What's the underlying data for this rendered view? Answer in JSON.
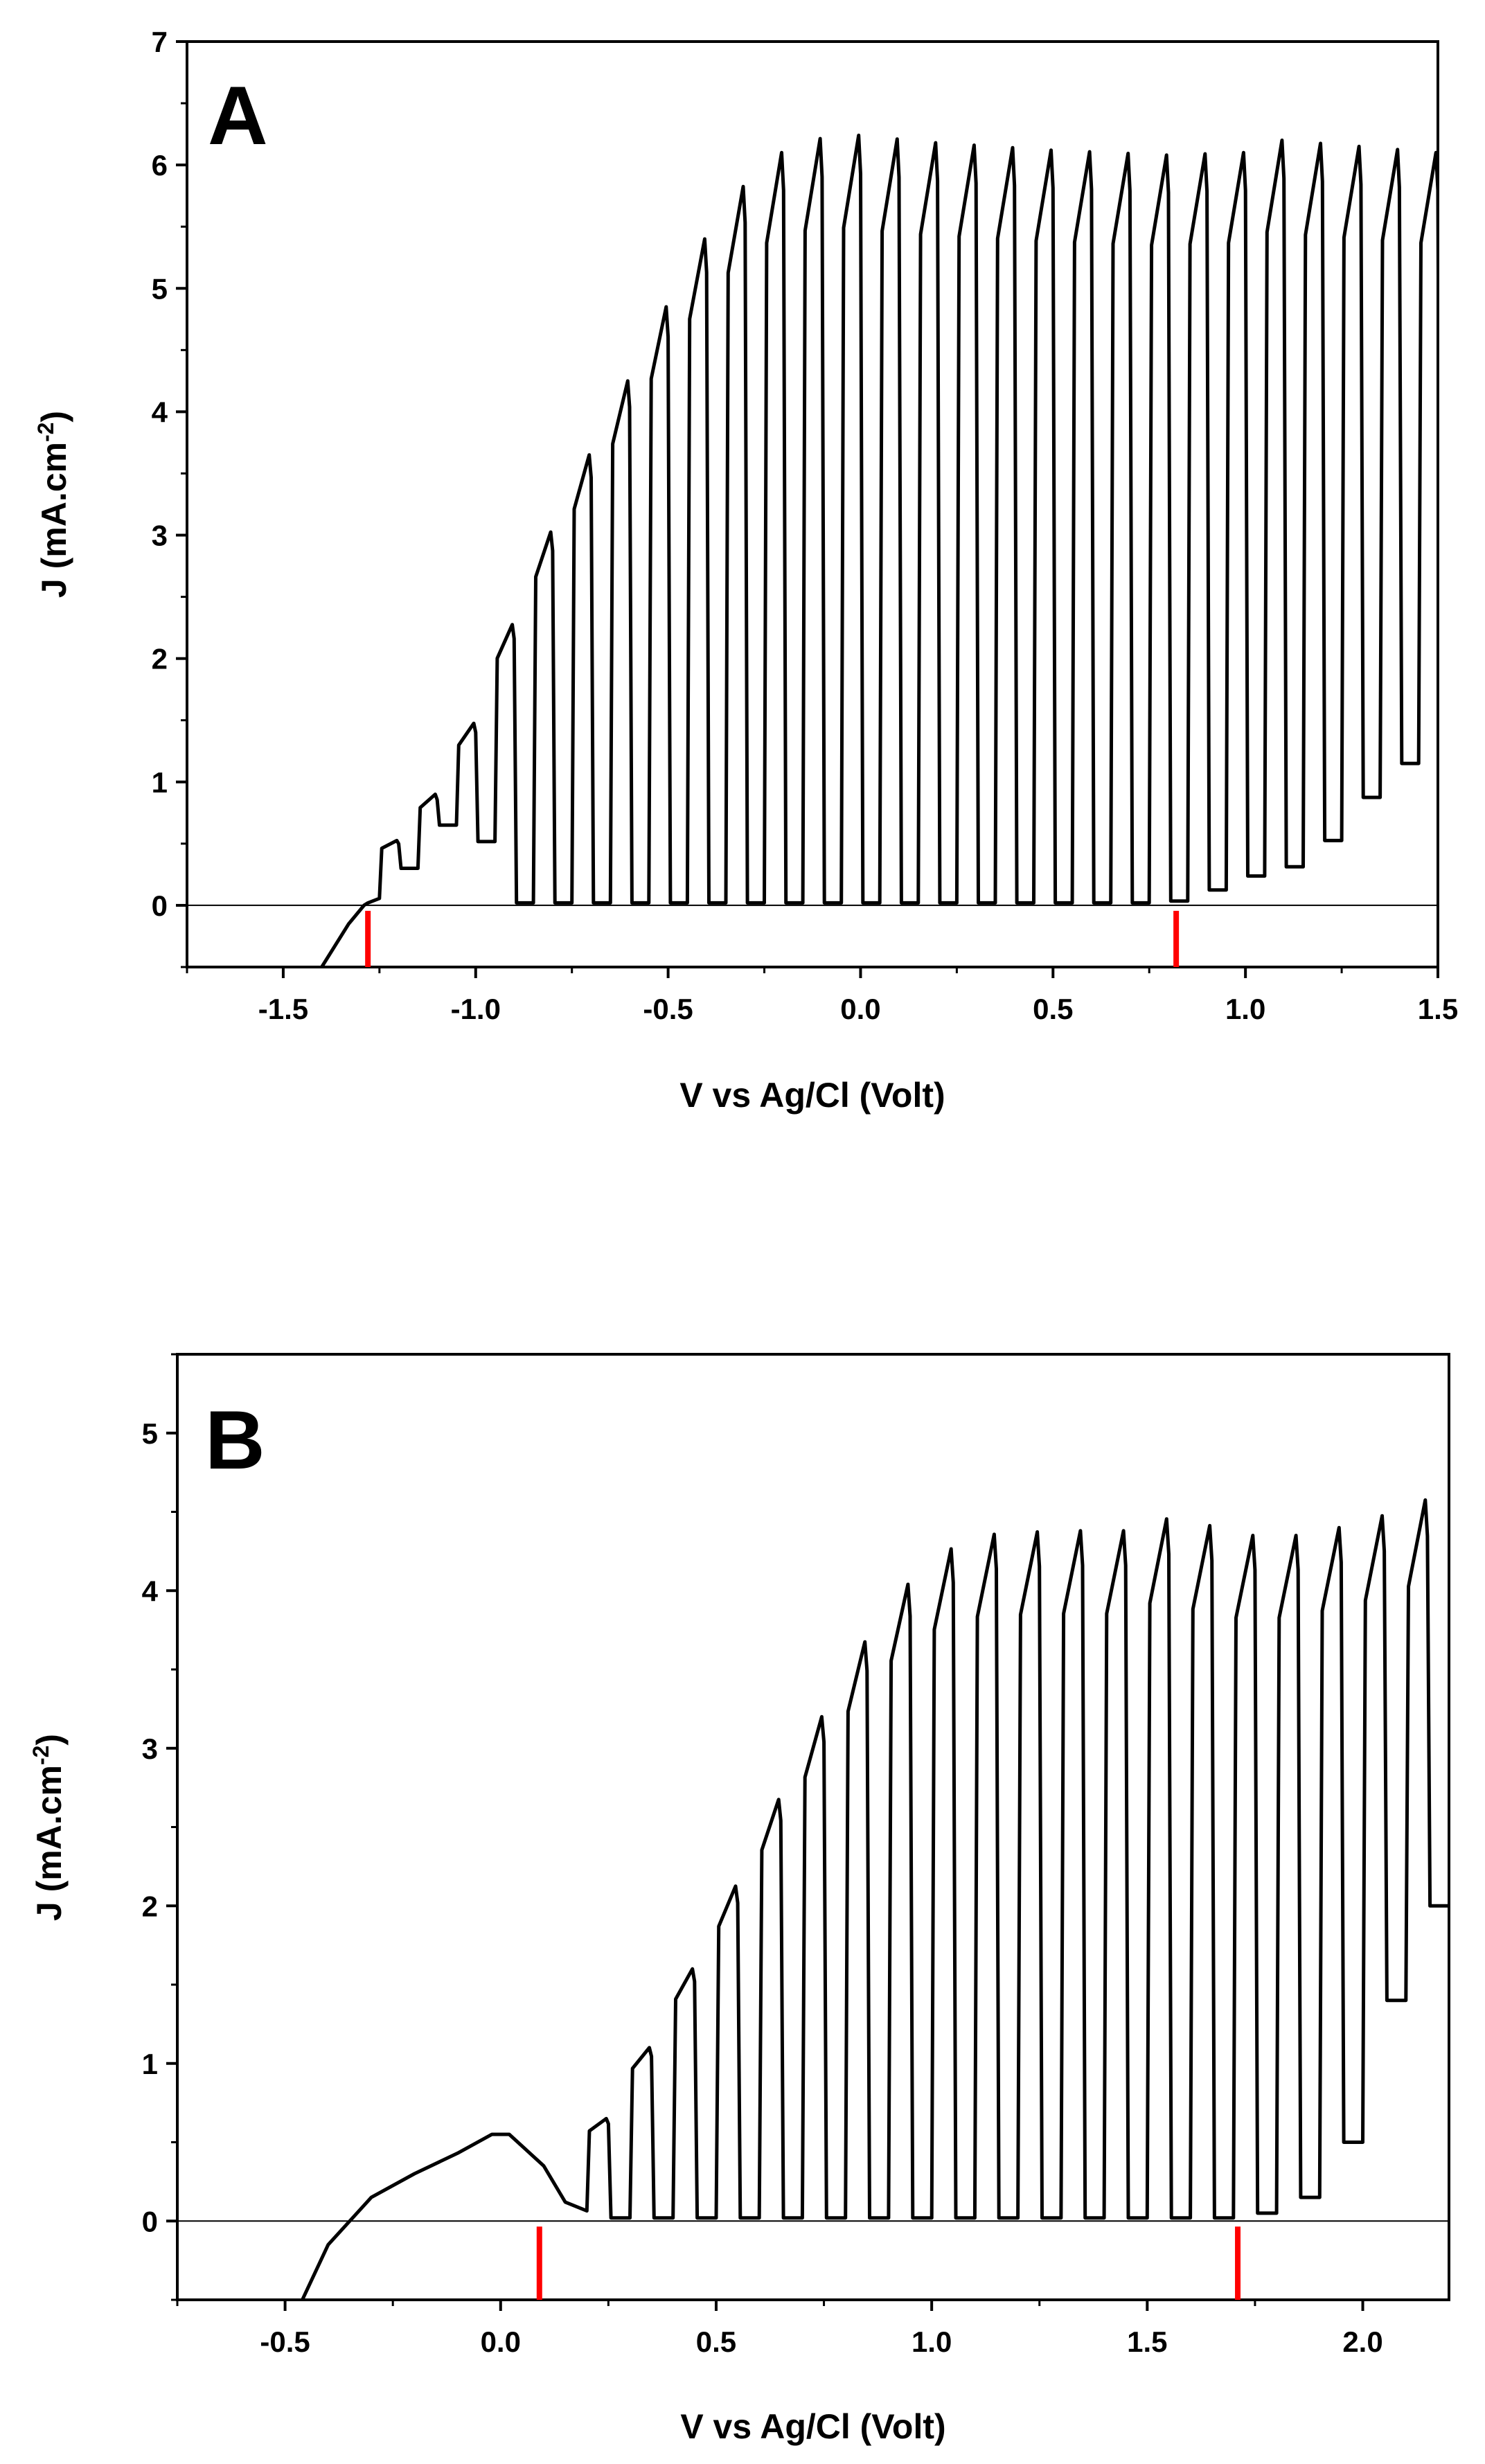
{
  "chart_data": [
    {
      "type": "line",
      "panel_label": "A",
      "xlabel": "V vs Ag/Cl (Volt)",
      "ylabel_main": "J (mA.cm",
      "ylabel_sup": "-2",
      "ylabel_close": ")",
      "xlim": [
        -1.75,
        1.5
      ],
      "ylim": [
        -0.5,
        7
      ],
      "x_ticks": [
        {
          "v": -1.5,
          "label": "-1.5"
        },
        {
          "v": -1.0,
          "label": "-1.0"
        },
        {
          "v": -0.5,
          "label": "-0.5"
        },
        {
          "v": 0.0,
          "label": "0.0"
        },
        {
          "v": 0.5,
          "label": "0.5"
        },
        {
          "v": 1.0,
          "label": "1.0"
        },
        {
          "v": 1.5,
          "label": "1.5"
        }
      ],
      "y_ticks": [
        {
          "v": 0,
          "label": "0"
        },
        {
          "v": 1,
          "label": "1"
        },
        {
          "v": 2,
          "label": "2"
        },
        {
          "v": 3,
          "label": "3"
        },
        {
          "v": 4,
          "label": "4"
        },
        {
          "v": 5,
          "label": "5"
        },
        {
          "v": 6,
          "label": "6"
        },
        {
          "v": 7,
          "label": "7"
        }
      ],
      "baseline_y": 0,
      "markers_x": [
        -1.28,
        0.82
      ],
      "marker_color": "#ff0000",
      "line_color": "#000000",
      "dark_line": [
        [
          -1.4,
          -0.5
        ],
        [
          -1.33,
          -0.15
        ],
        [
          -1.29,
          0.0
        ],
        [
          -1.28,
          0.02
        ]
      ],
      "dark_end": [
        -1.28,
        0.02
      ],
      "chop_period": 0.05,
      "chop_start": -1.25,
      "chop_end": 1.5,
      "peaks": [
        [
          -1.25,
          0.35
        ],
        [
          -1.15,
          0.7
        ],
        [
          -1.05,
          1.1
        ],
        [
          -0.95,
          1.85
        ],
        [
          -0.85,
          2.7
        ],
        [
          -0.75,
          3.35
        ],
        [
          -0.65,
          3.95
        ],
        [
          -0.55,
          4.55
        ],
        [
          -0.45,
          5.15
        ],
        [
          -0.35,
          5.65
        ],
        [
          -0.25,
          6.0
        ],
        [
          -0.15,
          6.2
        ],
        [
          0.0,
          6.24
        ],
        [
          0.2,
          6.18
        ],
        [
          0.5,
          6.12
        ],
        [
          0.8,
          6.08
        ],
        [
          1.0,
          6.1
        ],
        [
          1.1,
          6.2
        ],
        [
          1.3,
          6.15
        ],
        [
          1.5,
          6.1
        ]
      ],
      "darks": [
        [
          -1.28,
          0.0
        ],
        [
          -1.2,
          0.15
        ],
        [
          -1.1,
          0.45
        ],
        [
          -1.0,
          0.85
        ],
        [
          -0.88,
          0.05
        ],
        [
          -0.85,
          0.02
        ],
        [
          0.8,
          0.02
        ],
        [
          0.9,
          0.05
        ],
        [
          1.0,
          0.2
        ],
        [
          1.2,
          0.35
        ],
        [
          1.3,
          0.7
        ],
        [
          1.4,
          1.05
        ],
        [
          1.5,
          1.25
        ]
      ]
    },
    {
      "type": "line",
      "panel_label": "B",
      "xlabel": "V vs Ag/Cl (Volt)",
      "ylabel_main": "J (mA.cm",
      "ylabel_sup": "-2",
      "ylabel_close": ")",
      "xlim": [
        -0.75,
        2.2
      ],
      "ylim": [
        -0.5,
        5.5
      ],
      "x_ticks": [
        {
          "v": -0.5,
          "label": "-0.5"
        },
        {
          "v": 0.0,
          "label": "0.0"
        },
        {
          "v": 0.5,
          "label": "0.5"
        },
        {
          "v": 1.0,
          "label": "1.0"
        },
        {
          "v": 1.5,
          "label": "1.5"
        },
        {
          "v": 2.0,
          "label": "2.0"
        }
      ],
      "y_ticks": [
        {
          "v": 0,
          "label": "0"
        },
        {
          "v": 1,
          "label": "1"
        },
        {
          "v": 2,
          "label": "2"
        },
        {
          "v": 3,
          "label": "3"
        },
        {
          "v": 4,
          "label": "4"
        },
        {
          "v": 5,
          "label": "5"
        }
      ],
      "baseline_y": 0,
      "markers_x": [
        0.09,
        1.71
      ],
      "marker_color": "#ff0000",
      "line_color": "#000000",
      "dark_line": [
        [
          -0.46,
          -0.5
        ],
        [
          -0.4,
          -0.15
        ],
        [
          -0.3,
          0.15
        ],
        [
          -0.2,
          0.3
        ],
        [
          -0.1,
          0.43
        ],
        [
          -0.02,
          0.55
        ],
        [
          0.02,
          0.55
        ],
        [
          0.1,
          0.35
        ],
        [
          0.15,
          0.12
        ]
      ],
      "dark_end": [
        0.15,
        0.12
      ],
      "chop_period": 0.05,
      "chop_start": 0.2,
      "chop_end": 2.2,
      "peaks": [
        [
          0.2,
          0.45
        ],
        [
          0.3,
          0.85
        ],
        [
          0.4,
          1.35
        ],
        [
          0.5,
          1.85
        ],
        [
          0.6,
          2.4
        ],
        [
          0.7,
          2.95
        ],
        [
          0.8,
          3.45
        ],
        [
          0.9,
          3.9
        ],
        [
          1.0,
          4.18
        ],
        [
          1.1,
          4.35
        ],
        [
          1.3,
          4.38
        ],
        [
          1.5,
          4.38
        ],
        [
          1.58,
          4.5
        ],
        [
          1.7,
          4.35
        ],
        [
          1.9,
          4.35
        ],
        [
          2.0,
          4.45
        ],
        [
          2.1,
          4.5
        ],
        [
          2.2,
          4.65
        ]
      ],
      "darks": [
        [
          0.15,
          0.1
        ],
        [
          0.22,
          0.05
        ],
        [
          0.3,
          0.02
        ],
        [
          1.7,
          0.02
        ],
        [
          1.8,
          0.05
        ],
        [
          1.9,
          0.15
        ],
        [
          2.0,
          0.5
        ],
        [
          2.05,
          0.9
        ],
        [
          2.1,
          1.4
        ],
        [
          2.15,
          1.75
        ],
        [
          2.2,
          2.0
        ]
      ]
    }
  ]
}
